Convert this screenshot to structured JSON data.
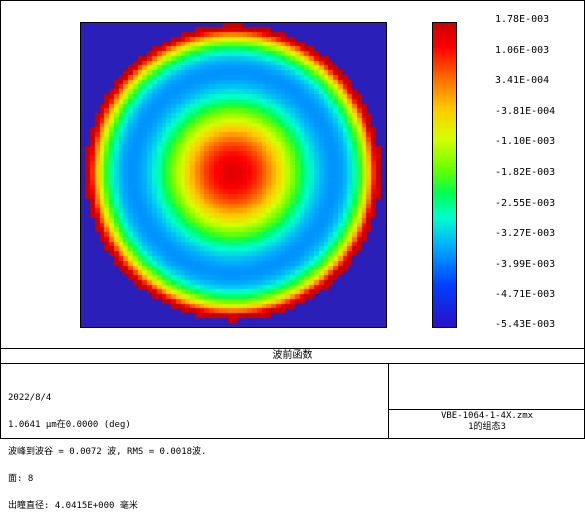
{
  "colors": {
    "background": "#2a1fb8"
  },
  "colorbar": {
    "ticks": [
      "1.78E-003",
      "1.06E-003",
      "3.41E-004",
      "-3.81E-004",
      "-1.10E-003",
      "-1.82E-003",
      "-2.55E-003",
      "-3.27E-003",
      "-3.99E-003",
      "-4.71E-003",
      "-5.43E-003"
    ]
  },
  "header": {
    "title": "波前函数"
  },
  "info": {
    "lines": [
      "2022/8/4",
      "1.0641 µm在0.0000 (deg)",
      "波峰到波谷 = 0.0072 波, RMS = 0.0018波.",
      "面: 8",
      "出瞳直径: 4.0415E+000 毫米"
    ]
  },
  "footer": {
    "file_name": "VBE-1064-1-4X.zmx",
    "configuration": "1的组态3"
  }
}
